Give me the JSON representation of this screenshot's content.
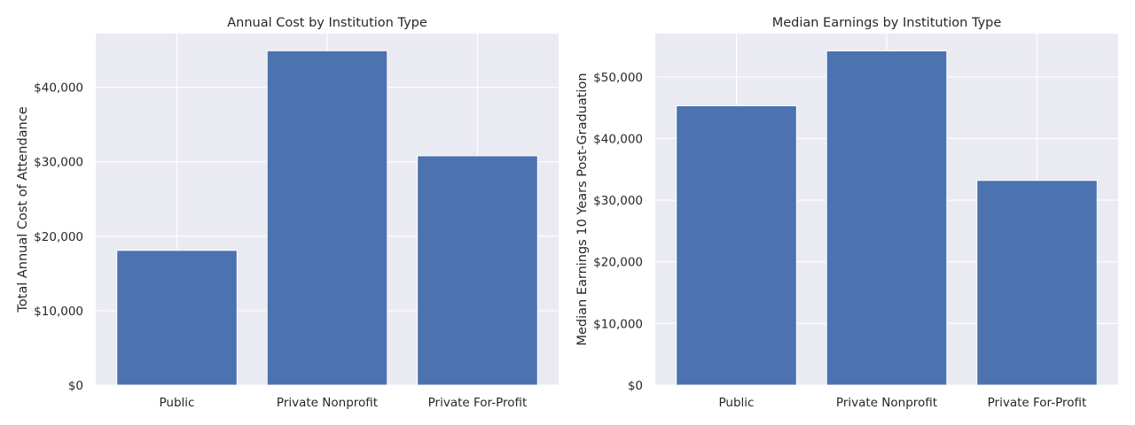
{
  "colors": {
    "bar": "#4c72b0",
    "plot_bg": "#eaeaf2",
    "grid": "#ffffff",
    "text": "#262626"
  },
  "chart_data": [
    {
      "type": "bar",
      "title": "Annual Cost by Institution Type",
      "xlabel": "",
      "ylabel": "Total Annual Cost of Attendance",
      "categories": [
        "Public",
        "Private Nonprofit",
        "Private For-Profit"
      ],
      "values": [
        18100,
        44900,
        30800
      ],
      "ylim": [
        0,
        47200
      ],
      "yticks": [
        0,
        10000,
        20000,
        30000,
        40000
      ],
      "ytick_labels": [
        "$0",
        "$10,000",
        "$20,000",
        "$30,000",
        "$40,000"
      ],
      "grid": true,
      "legend": "none"
    },
    {
      "type": "bar",
      "title": "Median Earnings by Institution Type",
      "xlabel": "",
      "ylabel": "Median Earnings 10 Years Post-Graduation",
      "categories": [
        "Public",
        "Private Nonprofit",
        "Private For-Profit"
      ],
      "values": [
        45300,
        54200,
        33200
      ],
      "ylim": [
        0,
        57000
      ],
      "yticks": [
        0,
        10000,
        20000,
        30000,
        40000,
        50000
      ],
      "ytick_labels": [
        "$0",
        "$10,000",
        "$20,000",
        "$30,000",
        "$40,000",
        "$50,000"
      ],
      "grid": true,
      "legend": "none"
    }
  ]
}
